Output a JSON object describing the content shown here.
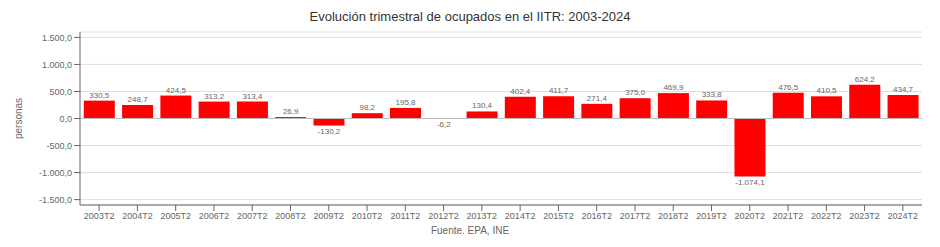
{
  "chart_data": {
    "type": "bar",
    "title": "Evolución trimestral de ocupados en el IITR: 2003-2024",
    "ylabel": "personas",
    "annotations": [
      "Fuente. EPA, INE"
    ],
    "categories": [
      "2003T2",
      "2004T2",
      "2005T2",
      "2006T2",
      "2007T2",
      "2008T2",
      "2009T2",
      "2010T2",
      "2011T2",
      "2012T2",
      "2013T2",
      "2014T2",
      "2015T2",
      "2016T2",
      "2017T2",
      "2018T2",
      "2019T2",
      "2020T2",
      "2021T2",
      "2022T2",
      "2023T2",
      "2024T2"
    ],
    "values": [
      330.5,
      248.7,
      424.5,
      313.2,
      313.4,
      26.9,
      -130.2,
      98.2,
      195.8,
      -6.2,
      130.4,
      402.4,
      411.7,
      271.4,
      375.0,
      469.9,
      333.8,
      -1074.1,
      476.5,
      410.5,
      624.2,
      434.7
    ],
    "value_labels": [
      "330,5",
      "248,7",
      "424,5",
      "313,2",
      "313,4",
      "26,9",
      "-130,2",
      "98,2",
      "195,8",
      "-6,2",
      "130,4",
      "402,4",
      "411,7",
      "271,4",
      "375,0",
      "469,9",
      "333,8",
      "-1.074,1",
      "476,5",
      "410,5",
      "624,2",
      "434,7"
    ],
    "data_labels": true,
    "color": "#FF0000",
    "ylim": [
      -1600,
      1600
    ],
    "yticks": [
      {
        "value": -1500,
        "label": "-1.500,0"
      },
      {
        "value": -1000,
        "label": "-1.000,0"
      },
      {
        "value": -500,
        "label": "-500,0"
      },
      {
        "value": 0,
        "label": "0,0"
      },
      {
        "value": 500,
        "label": "500,0"
      },
      {
        "value": 1000,
        "label": "1.000,0"
      },
      {
        "value": 1500,
        "label": "1.500,0"
      }
    ],
    "grid": true
  }
}
